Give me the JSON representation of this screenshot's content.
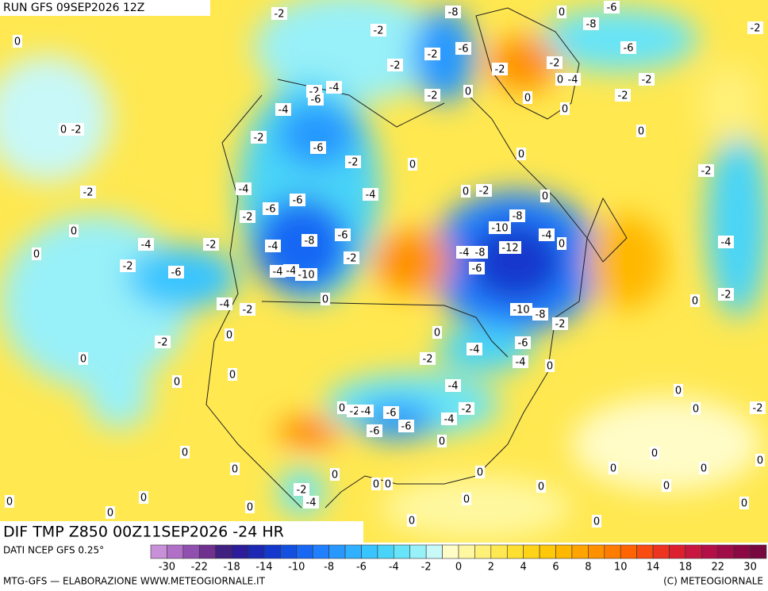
{
  "header": {
    "run": "RUN GFS 09SEP2026 12Z"
  },
  "map": {
    "title": "DIF TMP Z850 00Z11SEP2026 -24 HR",
    "contour_labels": [
      -2,
      -8,
      -6,
      0,
      -2,
      0,
      -2,
      -8,
      -2,
      -6,
      -6,
      -2,
      -2,
      -2,
      0,
      -4,
      -2,
      -2,
      -4,
      -6,
      -4,
      -2,
      0,
      0,
      -2,
      0,
      0,
      -2,
      -2,
      -6,
      0,
      0,
      -2,
      0,
      -2,
      -2,
      -4,
      -4,
      0,
      -2,
      0,
      -6,
      -6,
      -2,
      -8,
      -10,
      -4,
      0,
      -4,
      -2,
      -6,
      -8,
      -4,
      0,
      -4,
      0,
      -2,
      -4,
      -8,
      -12,
      -6,
      -2,
      -6,
      -4,
      -4,
      -10,
      0,
      -4,
      -2,
      0,
      -2,
      -10,
      -8,
      -2,
      0,
      0,
      -2,
      -6,
      -4,
      0,
      -2,
      -4,
      0,
      0,
      0,
      -4,
      0,
      0,
      -2,
      0,
      -2,
      -4,
      -6,
      -6,
      -6,
      -4,
      0,
      -2,
      0,
      0,
      0,
      0,
      0,
      0,
      0,
      0,
      0,
      0,
      0,
      0,
      -2,
      0,
      0,
      -4,
      0,
      0,
      0,
      0,
      0,
      0
    ]
  },
  "colorbar": {
    "source": "DATI NCEP GFS 0.25°",
    "colors": [
      "#c890d8",
      "#b070c8",
      "#9050b0",
      "#703090",
      "#402080",
      "#2c1c9c",
      "#1c28b4",
      "#1438cc",
      "#1450e0",
      "#1868f4",
      "#2080ff",
      "#2898ff",
      "#30b0ff",
      "#38c4ff",
      "#48d4f8",
      "#68e4f8",
      "#98f0f8",
      "#c8f8f8",
      "#fffcc8",
      "#fff8a0",
      "#fff078",
      "#ffe850",
      "#ffe030",
      "#ffd418",
      "#ffc808",
      "#ffb800",
      "#ffa400",
      "#ff9000",
      "#ff7c00",
      "#ff6400",
      "#f84c10",
      "#ec3420",
      "#dc2030",
      "#c81840",
      "#b41048",
      "#a00c48",
      "#8c0844",
      "#780840"
    ],
    "ticks": [
      -30,
      -22,
      -18,
      -14,
      -10,
      -8,
      -6,
      -4,
      -2,
      0,
      2,
      4,
      6,
      8,
      10,
      14,
      18,
      22,
      30
    ]
  },
  "footer": {
    "credit": "MTG-GFS — ELABORAZIONE WWW.METEOGIORNALE.IT",
    "copyright": "(C) METEOGIORNALE"
  }
}
